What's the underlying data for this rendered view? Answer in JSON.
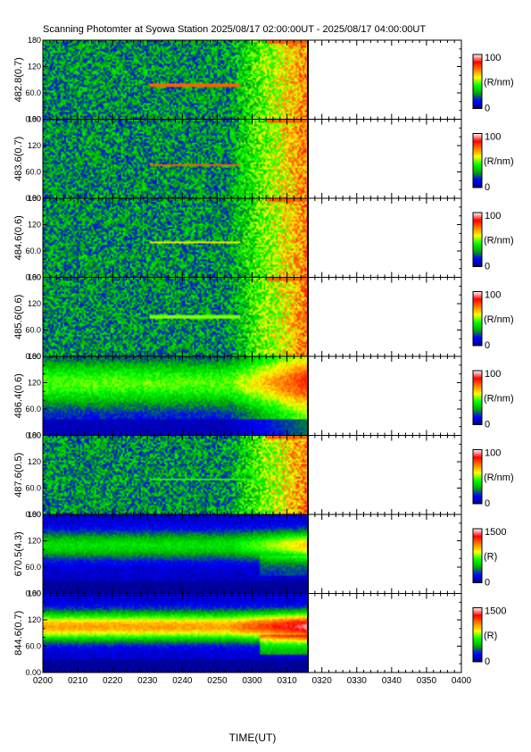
{
  "title": "Scanning Photomter at Syowa Station 2025/08/17 02:00:00UT - 2025/08/17 04:00:00UT",
  "chart_data": {
    "type": "heatmap",
    "title": "Scanning Photomter at Syowa Station 2025/08/17 02:00:00UT - 2025/08/17 04:00:00UT",
    "xlabel": "TIME(UT)",
    "x_ticks": [
      "0200",
      "0210",
      "0220",
      "0230",
      "0240",
      "0250",
      "0300",
      "0310",
      "0320",
      "0330",
      "0340",
      "0350",
      "0400"
    ],
    "xlim": [
      "0200",
      "0400"
    ],
    "data_end_time": "0316",
    "y_ticks": [
      "0.00",
      "60.0",
      "120",
      "180"
    ],
    "ylim": [
      0,
      180
    ],
    "colormap": [
      "#000080",
      "#0000ff",
      "#00aa00",
      "#00ff00",
      "#ffff00",
      "#ff8000",
      "#ff0000",
      "#ffffff"
    ],
    "panels": [
      {
        "ylabel": "482.8(0.7)",
        "cbar_label": "(R/nm)",
        "cbar_max": "100",
        "cbar_min": "0",
        "profile": "noise",
        "arc_y": 78,
        "arc_level": 0.75
      },
      {
        "ylabel": "483.6(0.7)",
        "cbar_label": "(R/nm)",
        "cbar_max": "100",
        "cbar_min": "0",
        "profile": "noise",
        "arc_y": 75,
        "arc_level": 0.75
      },
      {
        "ylabel": "484.6(0.6)",
        "cbar_label": "(R/nm)",
        "cbar_max": "100",
        "cbar_min": "0",
        "profile": "noise",
        "arc_y": 80,
        "arc_level": 0.6
      },
      {
        "ylabel": "485.6(0.6)",
        "cbar_label": "(R/nm)",
        "cbar_max": "100",
        "cbar_min": "0",
        "profile": "noise",
        "arc_y": 90,
        "arc_level": 0.5
      },
      {
        "ylabel": "486.4(0.6)",
        "cbar_label": "(R/nm)",
        "cbar_max": "100",
        "cbar_min": "0",
        "profile": "smooth",
        "arc_y": 120,
        "arc_level": 0.6
      },
      {
        "ylabel": "487.6(0.5)",
        "cbar_label": "(R/nm)",
        "cbar_max": "100",
        "cbar_min": "0",
        "profile": "noise",
        "arc_y": 80,
        "arc_level": 0.45
      },
      {
        "ylabel": "670.5(4.3)",
        "cbar_label": "(R)",
        "cbar_max": "1500",
        "cbar_min": "0",
        "profile": "band",
        "arc_y": 110,
        "arc_level": 0.3
      },
      {
        "ylabel": "844.6(0.7)",
        "cbar_label": "(R)",
        "cbar_max": "1500",
        "cbar_min": "0",
        "profile": "band",
        "arc_y": 105,
        "arc_level": 0.6
      }
    ]
  }
}
